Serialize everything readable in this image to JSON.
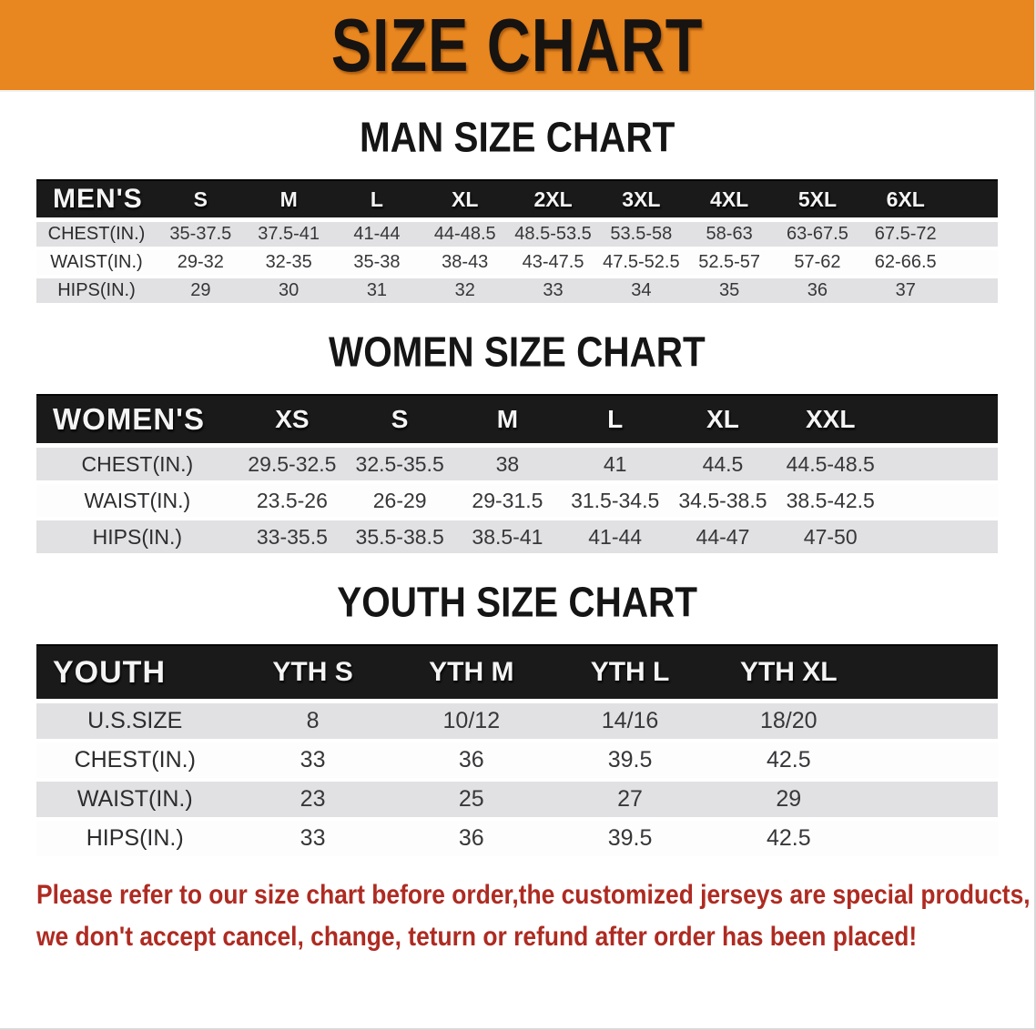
{
  "banner": {
    "title": "SIZE CHART",
    "bg_color": "#E8861F",
    "text_color": "#171310"
  },
  "sections": [
    {
      "heading": "MAN SIZE CHART",
      "table": {
        "header_label": "MEN'S",
        "columns": [
          "S",
          "M",
          "L",
          "XL",
          "2XL",
          "3XL",
          "4XL",
          "5XL",
          "6XL"
        ],
        "rows": [
          {
            "label": "CHEST(IN.)",
            "values": [
              "35-37.5",
              "37.5-41",
              "41-44",
              "44-48.5",
              "48.5-53.5",
              "53.5-58",
              "58-63",
              "63-67.5",
              "67.5-72"
            ]
          },
          {
            "label": "WAIST(IN.)",
            "values": [
              "29-32",
              "32-35",
              "35-38",
              "38-43",
              "43-47.5",
              "47.5-52.5",
              "52.5-57",
              "57-62",
              "62-66.5"
            ]
          },
          {
            "label": "HIPS(IN.)",
            "values": [
              "29",
              "30",
              "31",
              "32",
              "33",
              "34",
              "35",
              "36",
              "37"
            ]
          }
        ]
      }
    },
    {
      "heading": "WOMEN SIZE CHART",
      "table": {
        "header_label": "WOMEN'S",
        "columns": [
          "XS",
          "S",
          "M",
          "L",
          "XL",
          "XXL"
        ],
        "rows": [
          {
            "label": "CHEST(IN.)",
            "values": [
              "29.5-32.5",
              "32.5-35.5",
              "38",
              "41",
              "44.5",
              "44.5-48.5"
            ]
          },
          {
            "label": "WAIST(IN.)",
            "values": [
              "23.5-26",
              "26-29",
              "29-31.5",
              "31.5-34.5",
              "34.5-38.5",
              "38.5-42.5"
            ]
          },
          {
            "label": "HIPS(IN.)",
            "values": [
              "33-35.5",
              "35.5-38.5",
              "38.5-41",
              "41-44",
              "44-47",
              "47-50"
            ]
          }
        ]
      }
    },
    {
      "heading": "YOUTH SIZE CHART",
      "table": {
        "header_label": "YOUTH",
        "columns": [
          "YTH S",
          "YTH M",
          "YTH L",
          "YTH XL"
        ],
        "rows": [
          {
            "label": "U.S.SIZE",
            "values": [
              "8",
              "10/12",
              "14/16",
              "18/20"
            ]
          },
          {
            "label": "CHEST(IN.)",
            "values": [
              "33",
              "36",
              "39.5",
              "42.5"
            ]
          },
          {
            "label": "WAIST(IN.)",
            "values": [
              "23",
              "25",
              "27",
              "29"
            ]
          },
          {
            "label": "HIPS(IN.)",
            "values": [
              "33",
              "36",
              "39.5",
              "42.5"
            ]
          }
        ]
      }
    }
  ],
  "footer": {
    "line1": "Please refer to our size chart before order,the customized jerseys are special products,",
    "line2": "we don't accept cancel, change, teturn or refund after order has been placed!",
    "text_color": "#AE2B22"
  }
}
